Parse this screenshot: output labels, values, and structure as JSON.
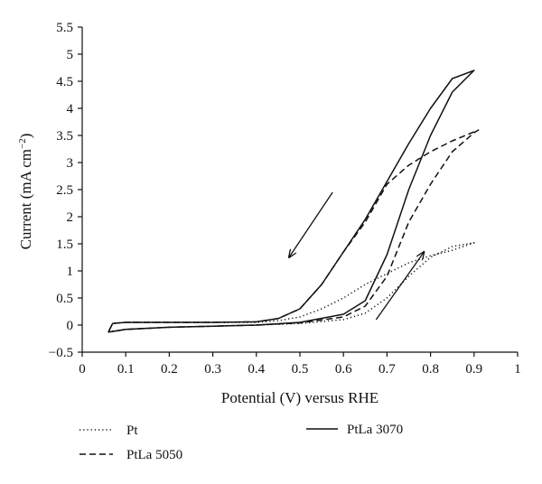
{
  "chart_data": {
    "type": "line",
    "title": "",
    "xlabel": "Potential (V) versus RHE",
    "ylabel": "Current (mA cm",
    "ylabel_sup": "−2",
    "ylabel_tail": ")",
    "xlim": [
      0,
      1
    ],
    "ylim": [
      -0.5,
      5.5
    ],
    "xticks": [
      "0",
      "0.1",
      "0.2",
      "0.3",
      "0.4",
      "0.5",
      "0.6",
      "0.7",
      "0.8",
      "0.9",
      "1"
    ],
    "yticks": [
      "−0.5",
      "0",
      "0.5",
      "1",
      "1.5",
      "2",
      "2.5",
      "3",
      "3.5",
      "4",
      "4.5",
      "5",
      "5.5"
    ],
    "grid": false,
    "legend_position": "bottom",
    "series": [
      {
        "name": "Pt",
        "line_style": "dotted",
        "color": "#111111",
        "anodic": [
          [
            0.06,
            -0.13
          ],
          [
            0.1,
            -0.08
          ],
          [
            0.2,
            -0.04
          ],
          [
            0.3,
            -0.02
          ],
          [
            0.4,
            0.0
          ],
          [
            0.5,
            0.03
          ],
          [
            0.6,
            0.1
          ],
          [
            0.65,
            0.22
          ],
          [
            0.7,
            0.5
          ],
          [
            0.75,
            0.9
          ],
          [
            0.8,
            1.25
          ],
          [
            0.85,
            1.45
          ],
          [
            0.9,
            1.52
          ]
        ],
        "cathodic": [
          [
            0.9,
            1.52
          ],
          [
            0.85,
            1.38
          ],
          [
            0.8,
            1.28
          ],
          [
            0.75,
            1.15
          ],
          [
            0.7,
            0.95
          ],
          [
            0.65,
            0.75
          ],
          [
            0.6,
            0.5
          ],
          [
            0.55,
            0.3
          ],
          [
            0.5,
            0.15
          ],
          [
            0.45,
            0.08
          ],
          [
            0.4,
            0.05
          ],
          [
            0.3,
            0.05
          ],
          [
            0.2,
            0.05
          ],
          [
            0.1,
            0.05
          ],
          [
            0.07,
            0.03
          ],
          [
            0.06,
            -0.13
          ]
        ]
      },
      {
        "name": "PtLa 5050",
        "line_style": "dashed",
        "color": "#111111",
        "anodic": [
          [
            0.06,
            -0.13
          ],
          [
            0.1,
            -0.08
          ],
          [
            0.2,
            -0.04
          ],
          [
            0.3,
            -0.02
          ],
          [
            0.4,
            0.0
          ],
          [
            0.5,
            0.04
          ],
          [
            0.6,
            0.15
          ],
          [
            0.65,
            0.35
          ],
          [
            0.7,
            0.9
          ],
          [
            0.75,
            1.9
          ],
          [
            0.8,
            2.6
          ],
          [
            0.85,
            3.2
          ],
          [
            0.9,
            3.55
          ],
          [
            0.91,
            3.6
          ]
        ],
        "cathodic": [
          [
            0.91,
            3.6
          ],
          [
            0.85,
            3.4
          ],
          [
            0.8,
            3.2
          ],
          [
            0.75,
            2.95
          ],
          [
            0.7,
            2.6
          ],
          [
            0.65,
            1.9
          ],
          [
            0.6,
            1.35
          ],
          [
            0.55,
            0.75
          ],
          [
            0.5,
            0.3
          ],
          [
            0.45,
            0.12
          ],
          [
            0.4,
            0.06
          ],
          [
            0.3,
            0.05
          ],
          [
            0.2,
            0.05
          ],
          [
            0.1,
            0.05
          ],
          [
            0.07,
            0.03
          ],
          [
            0.06,
            -0.13
          ]
        ]
      },
      {
        "name": "PtLa 3070",
        "line_style": "solid",
        "color": "#111111",
        "anodic": [
          [
            0.06,
            -0.13
          ],
          [
            0.1,
            -0.08
          ],
          [
            0.2,
            -0.04
          ],
          [
            0.3,
            -0.02
          ],
          [
            0.4,
            0.0
          ],
          [
            0.5,
            0.05
          ],
          [
            0.6,
            0.2
          ],
          [
            0.65,
            0.45
          ],
          [
            0.7,
            1.3
          ],
          [
            0.75,
            2.5
          ],
          [
            0.8,
            3.5
          ],
          [
            0.85,
            4.3
          ],
          [
            0.9,
            4.7
          ]
        ],
        "cathodic": [
          [
            0.9,
            4.7
          ],
          [
            0.85,
            4.55
          ],
          [
            0.8,
            4.0
          ],
          [
            0.75,
            3.35
          ],
          [
            0.7,
            2.65
          ],
          [
            0.65,
            1.95
          ],
          [
            0.6,
            1.35
          ],
          [
            0.55,
            0.75
          ],
          [
            0.5,
            0.3
          ],
          [
            0.45,
            0.12
          ],
          [
            0.4,
            0.06
          ],
          [
            0.3,
            0.05
          ],
          [
            0.2,
            0.05
          ],
          [
            0.1,
            0.05
          ],
          [
            0.07,
            0.03
          ],
          [
            0.06,
            -0.13
          ]
        ]
      }
    ],
    "annotations": [
      {
        "name": "cathodic-sweep-arrow",
        "from": [
          0.575,
          2.45
        ],
        "to": [
          0.475,
          1.25
        ]
      },
      {
        "name": "anodic-sweep-arrow",
        "from": [
          0.675,
          0.1
        ],
        "to": [
          0.785,
          1.35
        ]
      }
    ]
  }
}
